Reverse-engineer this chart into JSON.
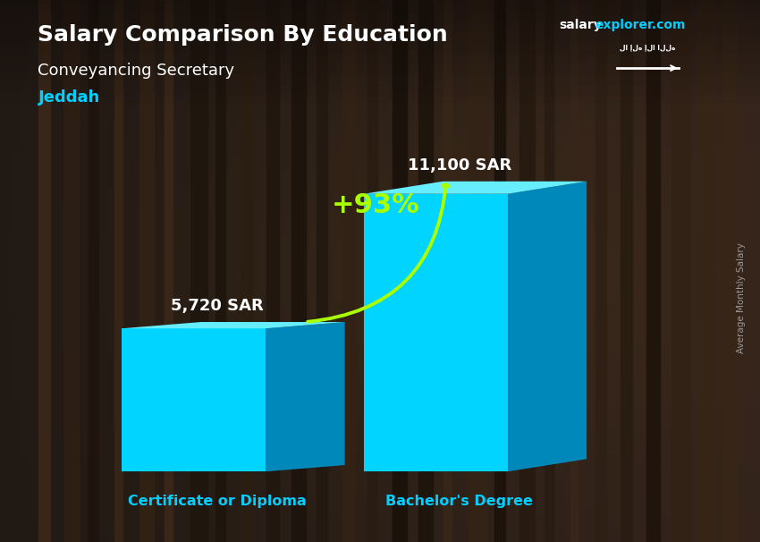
{
  "title": "Salary Comparison By Education",
  "subtitle": "Conveyancing Secretary",
  "location": "Jeddah",
  "ylabel": "Average Monthly Salary",
  "categories": [
    "Certificate or Diploma",
    "Bachelor's Degree"
  ],
  "values": [
    5720,
    11100
  ],
  "value_labels": [
    "5,720 SAR",
    "11,100 SAR"
  ],
  "pct_label": "+93%",
  "bar_face_color": "#00D4FF",
  "bar_top_color": "#66EEFF",
  "bar_side_color": "#0088BB",
  "bg_color": "#2a1a0e",
  "title_color": "#FFFFFF",
  "subtitle_color": "#FFFFFF",
  "location_color": "#00CFFF",
  "value_color": "#FFFFFF",
  "category_color": "#00CFFF",
  "pct_color": "#AAFF00",
  "arrow_color": "#AAFF00",
  "site_salary_color": "#FFFFFF",
  "site_explorer_color": "#00CFFF",
  "ylim": [
    0,
    13000
  ],
  "bar_positions": [
    0.25,
    0.62
  ],
  "bar_width": 0.22,
  "depth_ratio": 0.12,
  "figsize": [
    8.5,
    6.06
  ],
  "dpi": 100
}
